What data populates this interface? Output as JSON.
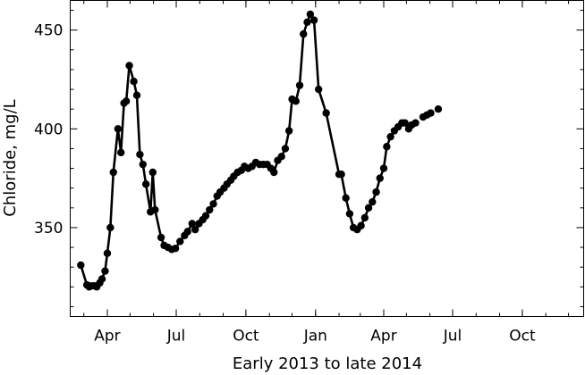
{
  "chart_data": {
    "type": "line",
    "title": "",
    "xlabel": "Early 2013 to late 2014",
    "ylabel": "Chloride, mg/L",
    "x_tick_labels": [
      "Apr",
      "Jul",
      "Oct",
      "Jan",
      "Apr",
      "Jul",
      "Oct"
    ],
    "x_tick_dates": [
      "2013-04-01",
      "2013-07-01",
      "2013-10-01",
      "2014-01-01",
      "2014-04-01",
      "2014-07-01",
      "2014-10-01"
    ],
    "y_ticks": [
      350,
      400,
      450
    ],
    "xlim": [
      "2013-02-11",
      "2014-12-21"
    ],
    "ylim": [
      305,
      465
    ],
    "grid": false,
    "line_color": "#000000",
    "series": [
      {
        "name": "",
        "points": [
          {
            "date": "2013-02-25",
            "value": 331
          },
          {
            "date": "2013-03-05",
            "value": 321
          },
          {
            "date": "2013-03-08",
            "value": 320
          },
          {
            "date": "2013-03-11",
            "value": 320.5
          },
          {
            "date": "2013-03-15",
            "value": 320.5
          },
          {
            "date": "2013-03-18",
            "value": 320
          },
          {
            "date": "2013-03-22",
            "value": 322
          },
          {
            "date": "2013-03-25",
            "value": 324
          },
          {
            "date": "2013-03-29",
            "value": 328
          },
          {
            "date": "2013-04-01",
            "value": 337
          },
          {
            "date": "2013-04-05",
            "value": 350
          },
          {
            "date": "2013-04-09",
            "value": 378
          },
          {
            "date": "2013-04-15",
            "value": 400
          },
          {
            "date": "2013-04-19",
            "value": 388
          },
          {
            "date": "2013-04-23",
            "value": 413
          },
          {
            "date": "2013-04-26",
            "value": 414
          },
          {
            "date": "2013-04-30",
            "value": 432
          },
          {
            "date": "2013-05-06",
            "value": 424
          },
          {
            "date": "2013-05-10",
            "value": 417
          },
          {
            "date": "2013-05-14",
            "value": 387
          },
          {
            "date": "2013-05-18",
            "value": 382
          },
          {
            "date": "2013-05-22",
            "value": 372
          },
          {
            "date": "2013-05-28",
            "value": 358
          },
          {
            "date": "2013-05-31",
            "value": 378
          },
          {
            "date": "2013-06-03",
            "value": 359
          },
          {
            "date": "2013-06-11",
            "value": 345
          },
          {
            "date": "2013-06-15",
            "value": 341
          },
          {
            "date": "2013-06-20",
            "value": 340
          },
          {
            "date": "2013-06-25",
            "value": 339
          },
          {
            "date": "2013-06-30",
            "value": 339.5
          },
          {
            "date": "2013-07-06",
            "value": 343
          },
          {
            "date": "2013-07-12",
            "value": 346
          },
          {
            "date": "2013-07-16",
            "value": 348
          },
          {
            "date": "2013-07-22",
            "value": 352
          },
          {
            "date": "2013-07-26",
            "value": 349
          },
          {
            "date": "2013-07-31",
            "value": 352
          },
          {
            "date": "2013-08-05",
            "value": 354
          },
          {
            "date": "2013-08-09",
            "value": 356
          },
          {
            "date": "2013-08-14",
            "value": 359
          },
          {
            "date": "2013-08-19",
            "value": 362
          },
          {
            "date": "2013-08-24",
            "value": 366
          },
          {
            "date": "2013-08-28",
            "value": 368
          },
          {
            "date": "2013-09-02",
            "value": 370
          },
          {
            "date": "2013-09-06",
            "value": 372
          },
          {
            "date": "2013-09-11",
            "value": 374
          },
          {
            "date": "2013-09-15",
            "value": 376
          },
          {
            "date": "2013-09-20",
            "value": 378
          },
          {
            "date": "2013-09-25",
            "value": 379
          },
          {
            "date": "2013-09-29",
            "value": 381
          },
          {
            "date": "2013-10-04",
            "value": 380
          },
          {
            "date": "2013-10-09",
            "value": 381
          },
          {
            "date": "2013-10-14",
            "value": 383
          },
          {
            "date": "2013-10-19",
            "value": 382
          },
          {
            "date": "2013-10-24",
            "value": 382
          },
          {
            "date": "2013-10-29",
            "value": 382
          },
          {
            "date": "2013-11-03",
            "value": 380
          },
          {
            "date": "2013-11-07",
            "value": 378
          },
          {
            "date": "2013-11-12",
            "value": 384
          },
          {
            "date": "2013-11-17",
            "value": 386
          },
          {
            "date": "2013-11-22",
            "value": 390
          },
          {
            "date": "2013-11-27",
            "value": 399
          },
          {
            "date": "2013-12-01",
            "value": 415
          },
          {
            "date": "2013-12-06",
            "value": 414
          },
          {
            "date": "2013-12-11",
            "value": 422
          },
          {
            "date": "2013-12-16",
            "value": 448
          },
          {
            "date": "2013-12-21",
            "value": 454
          },
          {
            "date": "2013-12-25",
            "value": 458
          },
          {
            "date": "2013-12-30",
            "value": 455
          },
          {
            "date": "2014-01-05",
            "value": 420
          },
          {
            "date": "2014-01-15",
            "value": 408
          },
          {
            "date": "2014-02-01",
            "value": 377
          },
          {
            "date": "2014-02-04",
            "value": 377
          },
          {
            "date": "2014-02-10",
            "value": 365
          },
          {
            "date": "2014-02-15",
            "value": 357
          },
          {
            "date": "2014-02-20",
            "value": 350
          },
          {
            "date": "2014-02-25",
            "value": 349
          },
          {
            "date": "2014-03-02",
            "value": 351
          },
          {
            "date": "2014-03-07",
            "value": 355
          },
          {
            "date": "2014-03-12",
            "value": 360
          },
          {
            "date": "2014-03-17",
            "value": 363
          },
          {
            "date": "2014-03-22",
            "value": 368
          },
          {
            "date": "2014-03-27",
            "value": 375
          },
          {
            "date": "2014-04-01",
            "value": 380
          },
          {
            "date": "2014-04-05",
            "value": 391
          },
          {
            "date": "2014-04-10",
            "value": 396
          },
          {
            "date": "2014-04-15",
            "value": 399
          },
          {
            "date": "2014-04-20",
            "value": 401
          },
          {
            "date": "2014-04-25",
            "value": 403
          },
          {
            "date": "2014-04-29",
            "value": 403
          },
          {
            "date": "2014-05-04",
            "value": 400
          },
          {
            "date": "2014-05-08",
            "value": 402
          },
          {
            "date": "2014-05-13",
            "value": 403
          },
          {
            "date": "2014-05-23",
            "value": 406
          },
          {
            "date": "2014-05-28",
            "value": 407
          },
          {
            "date": "2014-06-02",
            "value": 408
          },
          {
            "date": "2014-06-12",
            "value": 410
          }
        ]
      }
    ]
  }
}
